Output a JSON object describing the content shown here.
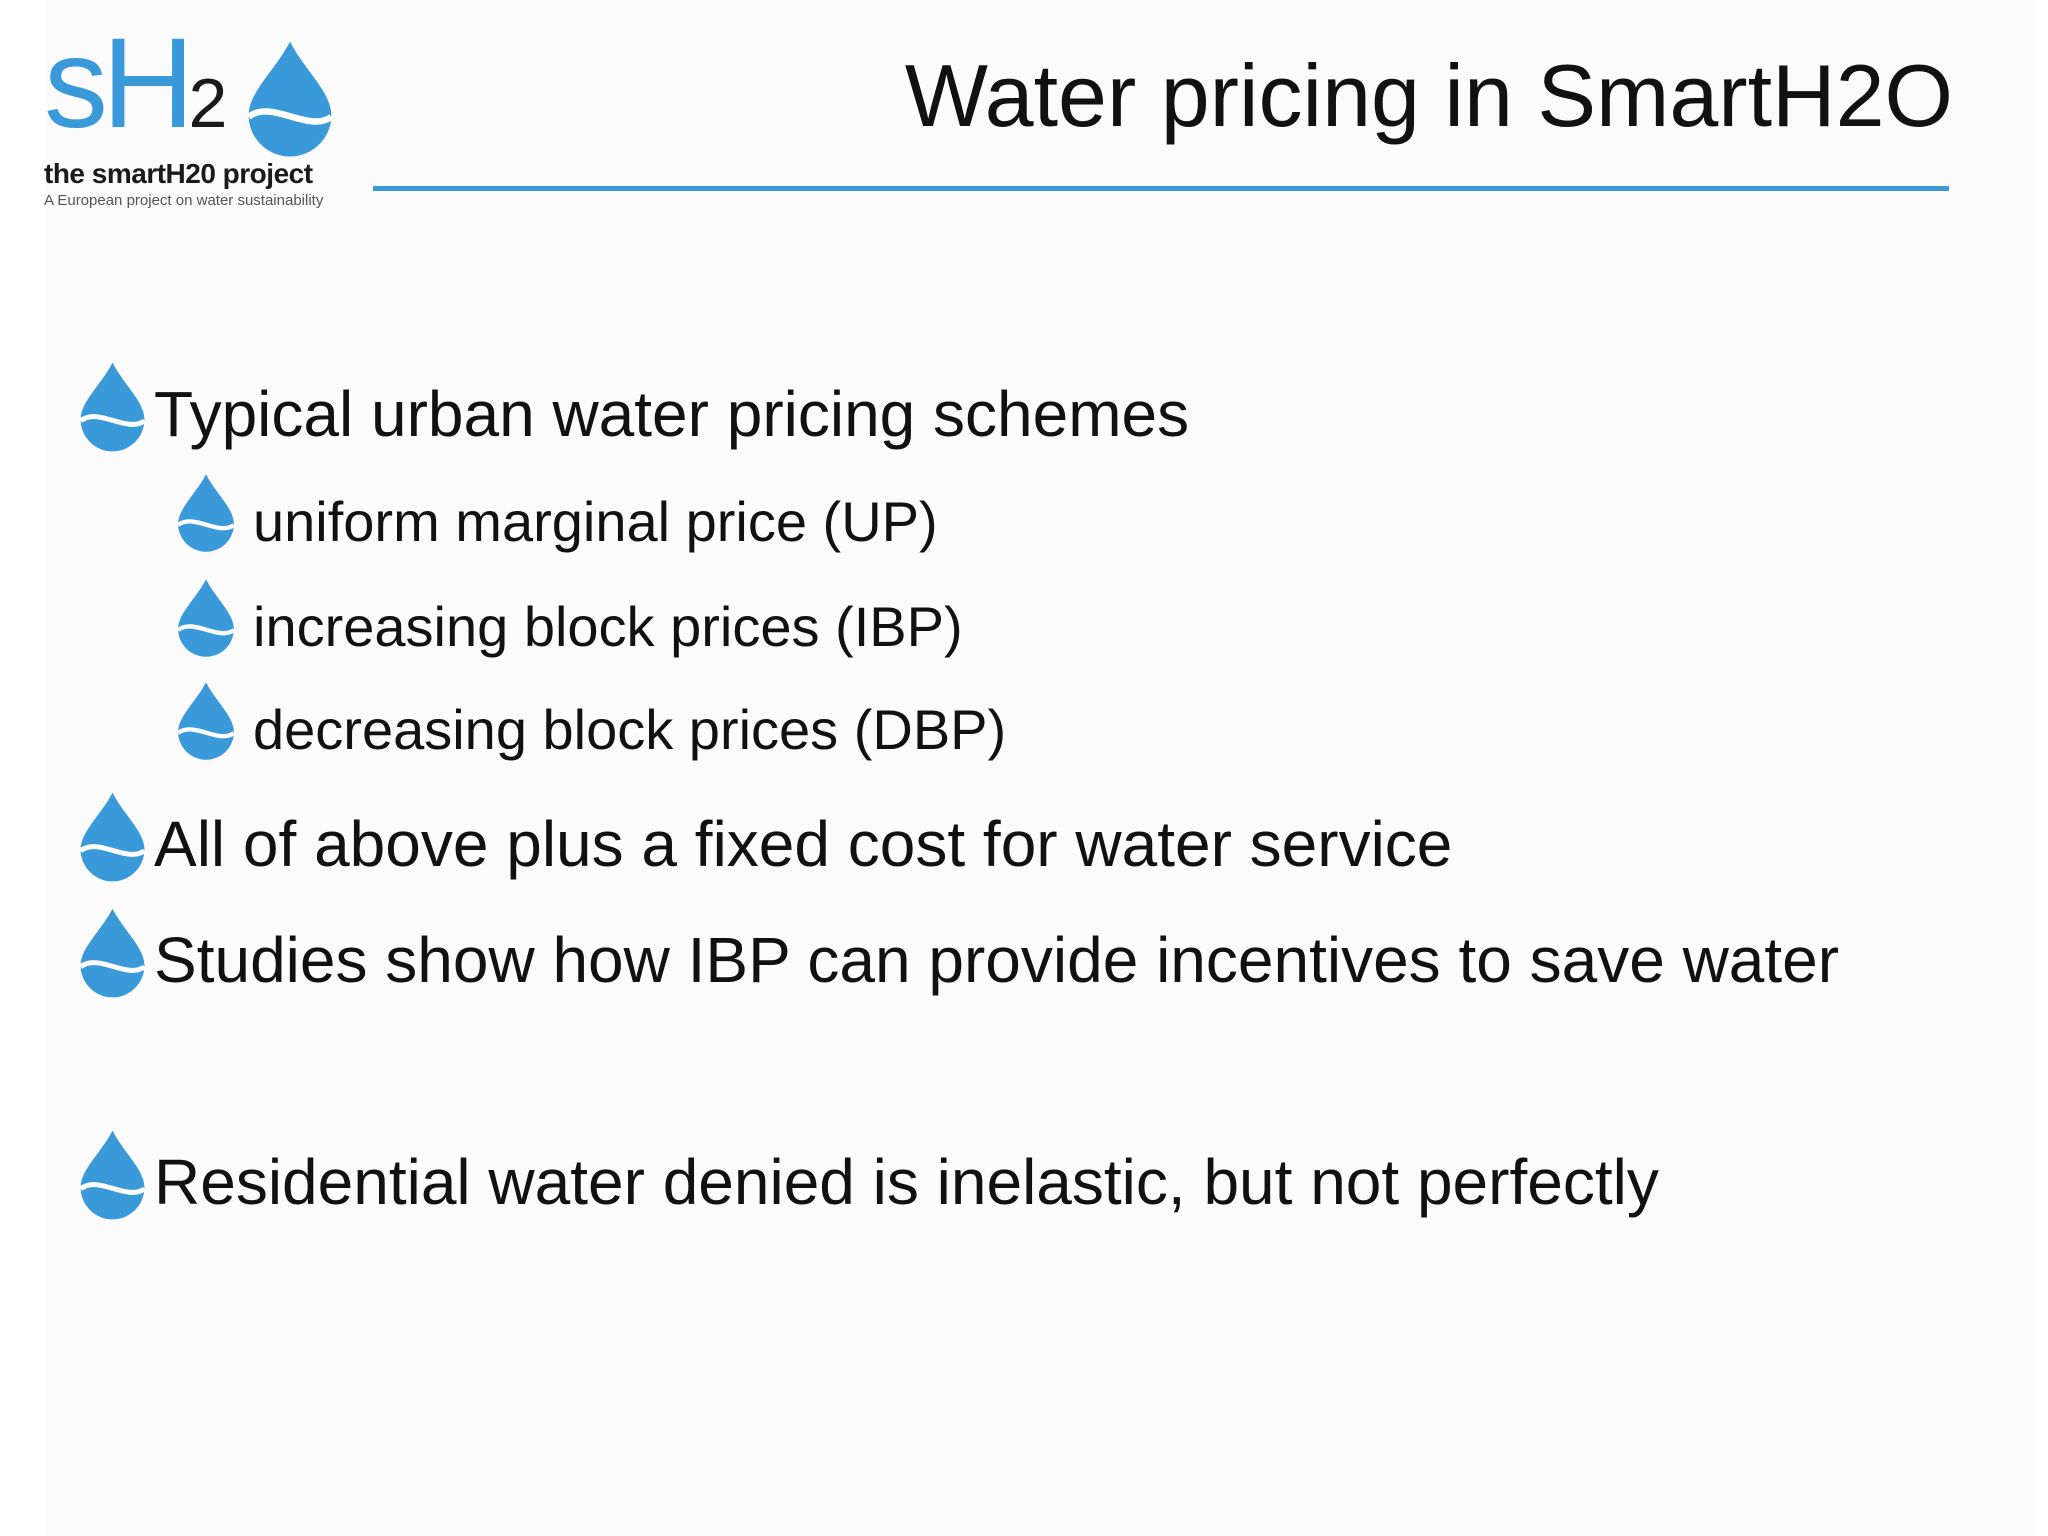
{
  "logo": {
    "letters": "sH",
    "subscript": "2",
    "name": "the smartH20 project",
    "tagline": "A European project on water sustainability"
  },
  "title": "Water pricing in SmartH2O",
  "bullets": [
    {
      "level": 1,
      "text": "Typical urban water pricing schemes"
    },
    {
      "level": 2,
      "text": "uniform marginal price (UP)"
    },
    {
      "level": 2,
      "text": "increasing block prices (IBP)"
    },
    {
      "level": 2,
      "text": "decreasing block prices (DBP)"
    },
    {
      "level": 1,
      "text": "All of above plus a fixed cost for water service"
    },
    {
      "level": 1,
      "text": "Studies show how IBP can provide incentives to save water"
    },
    {
      "level": 1,
      "text": "Residential water denied is inelastic, but not perfectly"
    }
  ]
}
